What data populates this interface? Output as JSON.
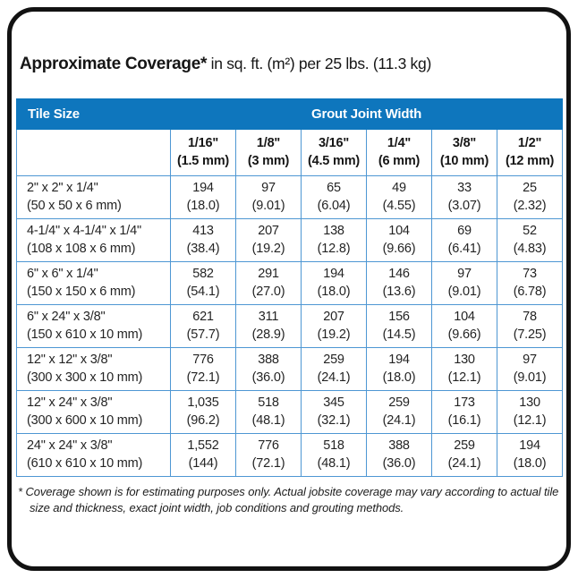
{
  "title": {
    "bold": "Approximate Coverage*",
    "rest": " in sq. ft. (m²) per 25 lbs. (11.3 kg)"
  },
  "chart_data": {
    "type": "table",
    "title": "Approximate Coverage* in sq. ft. (m²) per 25 lbs. (11.3 kg)",
    "header": {
      "tile_size": "Tile Size",
      "grout_joint_width": "Grout Joint Width"
    },
    "grout_columns": [
      {
        "width_in": "1/16\"",
        "width_metric": "(1.5 mm)"
      },
      {
        "width_in": "1/8\"",
        "width_metric": "(3 mm)"
      },
      {
        "width_in": "3/16\"",
        "width_metric": "(4.5 mm)"
      },
      {
        "width_in": "1/4\"",
        "width_metric": "(6 mm)"
      },
      {
        "width_in": "3/8\"",
        "width_metric": "(10 mm)"
      },
      {
        "width_in": "1/2\"",
        "width_metric": "(12 mm)"
      }
    ],
    "rows": [
      {
        "tile_size_in": "2\" x 2\" x 1/4\"",
        "tile_size_metric": "(50 x 50 x 6 mm)",
        "coverage": [
          {
            "sqft": "194",
            "m2": "(18.0)"
          },
          {
            "sqft": "97",
            "m2": "(9.01)"
          },
          {
            "sqft": "65",
            "m2": "(6.04)"
          },
          {
            "sqft": "49",
            "m2": "(4.55)"
          },
          {
            "sqft": "33",
            "m2": "(3.07)"
          },
          {
            "sqft": "25",
            "m2": "(2.32)"
          }
        ]
      },
      {
        "tile_size_in": "4-1/4\" x 4-1/4\" x 1/4\"",
        "tile_size_metric": "(108 x 108 x 6 mm)",
        "coverage": [
          {
            "sqft": "413",
            "m2": "(38.4)"
          },
          {
            "sqft": "207",
            "m2": "(19.2)"
          },
          {
            "sqft": "138",
            "m2": "(12.8)"
          },
          {
            "sqft": "104",
            "m2": "(9.66)"
          },
          {
            "sqft": "69",
            "m2": "(6.41)"
          },
          {
            "sqft": "52",
            "m2": "(4.83)"
          }
        ]
      },
      {
        "tile_size_in": "6\" x 6\" x 1/4\"",
        "tile_size_metric": "(150 x 150 x 6 mm)",
        "coverage": [
          {
            "sqft": "582",
            "m2": "(54.1)"
          },
          {
            "sqft": "291",
            "m2": "(27.0)"
          },
          {
            "sqft": "194",
            "m2": "(18.0)"
          },
          {
            "sqft": "146",
            "m2": "(13.6)"
          },
          {
            "sqft": "97",
            "m2": "(9.01)"
          },
          {
            "sqft": "73",
            "m2": "(6.78)"
          }
        ]
      },
      {
        "tile_size_in": "6\" x 24\" x 3/8\"",
        "tile_size_metric": "(150 x 610 x 10 mm)",
        "coverage": [
          {
            "sqft": "621",
            "m2": "(57.7)"
          },
          {
            "sqft": "311",
            "m2": "(28.9)"
          },
          {
            "sqft": "207",
            "m2": "(19.2)"
          },
          {
            "sqft": "156",
            "m2": "(14.5)"
          },
          {
            "sqft": "104",
            "m2": "(9.66)"
          },
          {
            "sqft": "78",
            "m2": "(7.25)"
          }
        ]
      },
      {
        "tile_size_in": "12\" x 12\" x 3/8\"",
        "tile_size_metric": "(300 x 300 x 10 mm)",
        "coverage": [
          {
            "sqft": "776",
            "m2": "(72.1)"
          },
          {
            "sqft": "388",
            "m2": "(36.0)"
          },
          {
            "sqft": "259",
            "m2": "(24.1)"
          },
          {
            "sqft": "194",
            "m2": "(18.0)"
          },
          {
            "sqft": "130",
            "m2": "(12.1)"
          },
          {
            "sqft": "97",
            "m2": "(9.01)"
          }
        ]
      },
      {
        "tile_size_in": "12\" x 24\" x 3/8\"",
        "tile_size_metric": "(300 x 600 x 10 mm)",
        "coverage": [
          {
            "sqft": "1,035",
            "m2": "(96.2)"
          },
          {
            "sqft": "518",
            "m2": "(48.1)"
          },
          {
            "sqft": "345",
            "m2": "(32.1)"
          },
          {
            "sqft": "259",
            "m2": "(24.1)"
          },
          {
            "sqft": "173",
            "m2": "(16.1)"
          },
          {
            "sqft": "130",
            "m2": "(12.1)"
          }
        ]
      },
      {
        "tile_size_in": "24\" x 24\" x 3/8\"",
        "tile_size_metric": "(610 x 610 x 10 mm)",
        "coverage": [
          {
            "sqft": "1,552",
            "m2": "(144)"
          },
          {
            "sqft": "776",
            "m2": "(72.1)"
          },
          {
            "sqft": "518",
            "m2": "(48.1)"
          },
          {
            "sqft": "388",
            "m2": "(36.0)"
          },
          {
            "sqft": "259",
            "m2": "(24.1)"
          },
          {
            "sqft": "194",
            "m2": "(18.0)"
          }
        ]
      }
    ]
  },
  "footnote": {
    "marker": "* ",
    "text": "Coverage shown is for estimating purposes only. Actual jobsite coverage may vary according to actual tile size and thickness, exact joint width, job conditions and grouting methods."
  },
  "colors": {
    "header_blue": "#0e76bd",
    "grid_blue": "#4e97d3",
    "frame_black": "#121212"
  }
}
